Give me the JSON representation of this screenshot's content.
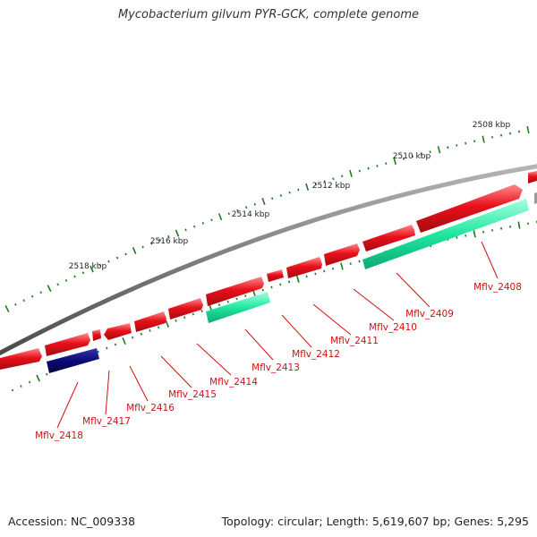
{
  "title": "Mycobacterium gilvum PYR-GCK, complete genome",
  "footer": {
    "accession": "Accession: NC_009338",
    "summary": "Topology: circular; Length: 5,619,607 bp; Genes: 5,295"
  },
  "colors": {
    "backbone": "#7d7d7d",
    "forward_gene": "#e8101a",
    "reverse_gene_cds": "#1ee8a0",
    "reverse_gene_other": "#0b0b78",
    "label": "#d01010",
    "tick": "#1f7a1f",
    "scale_text": "#222222",
    "title_text": "#333333"
  },
  "scale_labels": [
    {
      "kbp": 2508,
      "text": "2508 kbp"
    },
    {
      "kbp": 2510,
      "text": "2510 kbp"
    },
    {
      "kbp": 2512,
      "text": "2512 kbp"
    },
    {
      "kbp": 2514,
      "text": "2514 kbp"
    },
    {
      "kbp": 2516,
      "text": "2516 kbp"
    },
    {
      "kbp": 2518,
      "text": "2518 kbp"
    }
  ],
  "gene_labels": [
    "Mflv_2408",
    "Mflv_2409",
    "Mflv_2410",
    "Mflv_2411",
    "Mflv_2412",
    "Mflv_2413",
    "Mflv_2414",
    "Mflv_2415",
    "Mflv_2416",
    "Mflv_2417",
    "Mflv_2418"
  ]
}
